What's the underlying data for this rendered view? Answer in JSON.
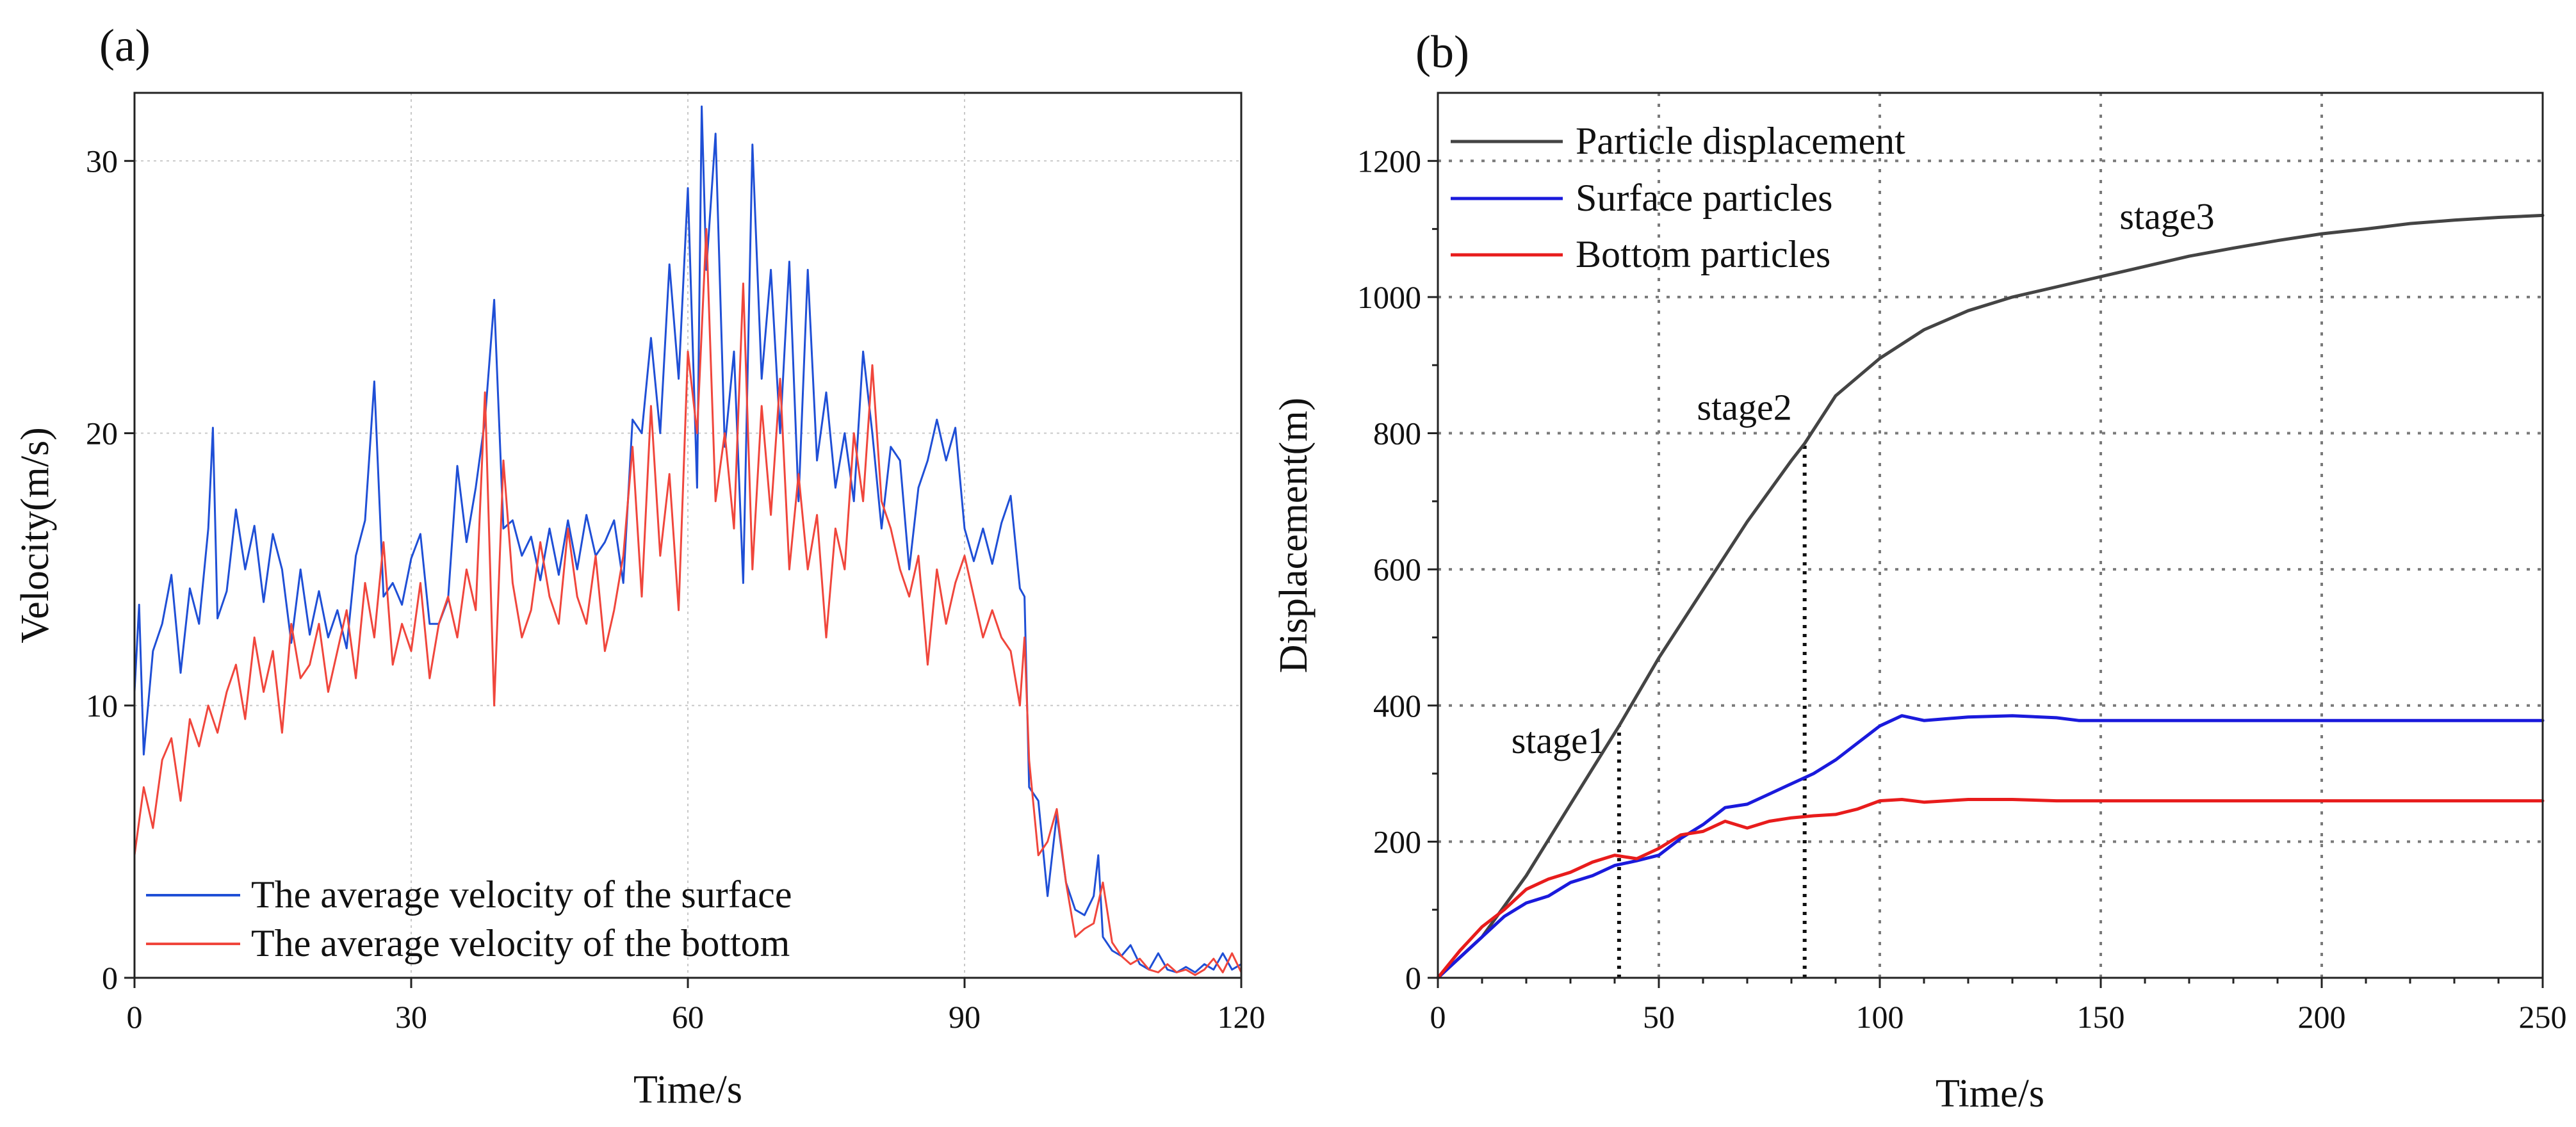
{
  "chart_data": [
    {
      "panel_label": "(a)",
      "type": "line",
      "xlabel": "Time/s",
      "ylabel": "Velocity(m/s)",
      "xlim": [
        0,
        120
      ],
      "ylim": [
        0,
        32.5
      ],
      "xticks": [
        "0",
        "30",
        "60",
        "90",
        "120"
      ],
      "yticks": [
        "0",
        "10",
        "20",
        "30"
      ],
      "grid": true,
      "legend_position": "bottom-left",
      "series": [
        {
          "name": "The average velocity of the surface",
          "color": "#1f4fd6",
          "x": [
            0,
            0.5,
            1,
            2,
            3,
            4,
            5,
            6,
            7,
            8,
            8.5,
            9,
            10,
            11,
            12,
            13,
            14,
            15,
            16,
            17,
            18,
            19,
            20,
            21,
            22,
            23,
            24,
            25,
            26,
            27,
            28,
            29,
            30,
            31,
            32,
            33,
            34,
            35,
            36,
            37,
            38,
            39,
            40,
            41,
            42,
            43,
            44,
            45,
            46,
            47,
            48,
            49,
            50,
            51,
            52,
            53,
            54,
            55,
            56,
            57,
            58,
            59,
            60,
            61,
            61.5,
            62,
            63,
            64,
            65,
            66,
            67,
            68,
            69,
            70,
            71,
            72,
            73,
            74,
            75,
            76,
            77,
            78,
            79,
            80,
            81,
            82,
            83,
            84,
            85,
            86,
            87,
            88,
            89,
            90,
            91,
            92,
            93,
            94,
            95,
            96,
            96.5,
            97,
            98,
            99,
            100,
            101,
            102,
            103,
            104,
            104.5,
            105,
            106,
            107,
            108,
            109,
            110,
            111,
            112,
            113,
            114,
            115,
            116,
            117,
            118,
            119,
            120
          ],
          "values": [
            10.5,
            13.7,
            8.2,
            12.0,
            13.0,
            14.8,
            11.2,
            14.3,
            13.0,
            16.5,
            20.2,
            13.2,
            14.2,
            17.2,
            15.0,
            16.6,
            13.8,
            16.3,
            15.0,
            12.3,
            15.0,
            12.6,
            14.2,
            12.5,
            13.5,
            12.1,
            15.5,
            16.8,
            21.9,
            14.0,
            14.5,
            13.7,
            15.4,
            16.3,
            13.0,
            13.0,
            13.9,
            18.8,
            16.0,
            18.0,
            20.5,
            24.9,
            16.5,
            16.8,
            15.5,
            16.2,
            14.6,
            16.5,
            14.8,
            16.8,
            15.0,
            17.0,
            15.5,
            16.0,
            16.8,
            14.5,
            20.5,
            20.0,
            23.5,
            20.0,
            26.2,
            22.0,
            29.0,
            18.0,
            32.0,
            26.0,
            31.0,
            19.5,
            23.0,
            14.5,
            30.6,
            22.0,
            26.0,
            20.0,
            26.3,
            17.5,
            26.0,
            19.0,
            21.5,
            18.0,
            20.0,
            17.5,
            23.0,
            20.0,
            16.5,
            19.5,
            19.0,
            15.0,
            18.0,
            19.0,
            20.5,
            19.0,
            20.2,
            16.5,
            15.3,
            16.5,
            15.2,
            16.7,
            17.7,
            14.3,
            14.0,
            7.0,
            6.5,
            3.0,
            6.0,
            3.5,
            2.5,
            2.3,
            3.0,
            4.5,
            1.5,
            1.0,
            0.8,
            1.2,
            0.5,
            0.3,
            0.9,
            0.3,
            0.2,
            0.4,
            0.2,
            0.5,
            0.3,
            0.9,
            0.3,
            0.5
          ]
        },
        {
          "name": "The average velocity of the bottom",
          "color": "#f0463c",
          "x": [
            0,
            1,
            2,
            3,
            4,
            5,
            6,
            7,
            8,
            9,
            10,
            11,
            12,
            13,
            14,
            15,
            16,
            17,
            18,
            19,
            20,
            21,
            22,
            23,
            24,
            25,
            26,
            27,
            28,
            29,
            30,
            31,
            32,
            33,
            34,
            35,
            36,
            37,
            38,
            39,
            40,
            41,
            42,
            43,
            44,
            45,
            46,
            47,
            48,
            49,
            50,
            51,
            52,
            53,
            54,
            55,
            56,
            57,
            58,
            59,
            60,
            61,
            62,
            63,
            64,
            65,
            66,
            67,
            68,
            69,
            70,
            71,
            72,
            73,
            74,
            75,
            76,
            77,
            78,
            79,
            80,
            81,
            82,
            83,
            84,
            85,
            86,
            87,
            88,
            89,
            90,
            91,
            92,
            93,
            94,
            95,
            96,
            96.5,
            97,
            98,
            99,
            100,
            101,
            102,
            103,
            104,
            105,
            106,
            107,
            108,
            109,
            110,
            111,
            112,
            113,
            114,
            115,
            116,
            117,
            118,
            119,
            120
          ],
          "values": [
            4.5,
            7.0,
            5.5,
            8.0,
            8.8,
            6.5,
            9.5,
            8.5,
            10.0,
            9.0,
            10.5,
            11.5,
            9.5,
            12.5,
            10.5,
            12.0,
            9.0,
            13.0,
            11.0,
            11.5,
            13.0,
            10.5,
            12.0,
            13.5,
            11.0,
            14.5,
            12.5,
            16.0,
            11.5,
            13.0,
            12.0,
            14.5,
            11.0,
            13.0,
            14.0,
            12.5,
            15.0,
            13.5,
            21.5,
            10.0,
            19.0,
            14.5,
            12.5,
            13.5,
            16.0,
            14.0,
            13.0,
            16.5,
            14.0,
            13.0,
            15.5,
            12.0,
            13.5,
            15.5,
            19.5,
            14.0,
            21.0,
            15.5,
            18.5,
            13.5,
            23.0,
            20.0,
            27.5,
            17.5,
            20.0,
            16.5,
            25.5,
            15.0,
            21.0,
            17.0,
            22.0,
            15.0,
            18.5,
            15.0,
            17.0,
            12.5,
            16.5,
            15.0,
            20.0,
            17.5,
            22.5,
            17.5,
            16.5,
            15.0,
            14.0,
            15.5,
            11.5,
            15.0,
            13.0,
            14.5,
            15.5,
            14.0,
            12.5,
            13.5,
            12.5,
            12.0,
            10.0,
            12.5,
            8.0,
            4.5,
            5.0,
            6.2,
            3.5,
            1.5,
            1.8,
            2.0,
            3.5,
            1.3,
            0.8,
            0.5,
            0.7,
            0.3,
            0.2,
            0.5,
            0.2,
            0.3,
            0.1,
            0.3,
            0.7,
            0.2,
            0.9,
            0.2
          ]
        }
      ]
    },
    {
      "panel_label": "(b)",
      "type": "line",
      "xlabel": "Time/s",
      "ylabel": "Displacement(m)",
      "xlim": [
        0,
        250
      ],
      "ylim": [
        0,
        1300
      ],
      "xticks": [
        "0",
        "50",
        "100",
        "150",
        "200",
        "250"
      ],
      "yticks": [
        "0",
        "200",
        "400",
        "600",
        "800",
        "1000",
        "1200"
      ],
      "grid": true,
      "legend_position": "top-left",
      "series": [
        {
          "name": "Particle displacement",
          "color": "#444444",
          "x": [
            0,
            10,
            20,
            30,
            41,
            50,
            60,
            70,
            80,
            83,
            90,
            100,
            110,
            120,
            130,
            140,
            150,
            160,
            170,
            180,
            190,
            200,
            210,
            220,
            230,
            240,
            250
          ],
          "values": [
            0,
            60,
            150,
            255,
            370,
            470,
            570,
            670,
            760,
            785,
            855,
            910,
            952,
            980,
            1000,
            1015,
            1030,
            1045,
            1060,
            1072,
            1083,
            1093,
            1100,
            1108,
            1113,
            1117,
            1120
          ]
        },
        {
          "name": "Surface particles",
          "color": "#1a1adc",
          "x": [
            0,
            5,
            10,
            15,
            20,
            25,
            30,
            35,
            40,
            45,
            50,
            55,
            60,
            65,
            70,
            75,
            80,
            85,
            90,
            95,
            100,
            105,
            110,
            120,
            130,
            140,
            145,
            150,
            200,
            250
          ],
          "values": [
            0,
            30,
            60,
            90,
            110,
            120,
            140,
            150,
            165,
            172,
            180,
            205,
            225,
            250,
            255,
            270,
            285,
            300,
            320,
            345,
            370,
            385,
            378,
            383,
            385,
            382,
            378,
            378,
            378,
            378
          ]
        },
        {
          "name": "Bottom particles",
          "color": "#e81c1c",
          "x": [
            0,
            5,
            10,
            15,
            20,
            25,
            30,
            35,
            40,
            45,
            50,
            55,
            60,
            65,
            70,
            75,
            80,
            85,
            90,
            95,
            100,
            105,
            110,
            120,
            130,
            140,
            150,
            200,
            250
          ],
          "values": [
            0,
            40,
            75,
            100,
            130,
            145,
            155,
            170,
            180,
            175,
            190,
            210,
            215,
            230,
            220,
            230,
            235,
            238,
            240,
            248,
            260,
            262,
            258,
            262,
            262,
            260,
            260,
            260,
            260
          ]
        }
      ],
      "annotations": [
        {
          "text": "stage1",
          "x": 41,
          "y": 330,
          "line_to_y": 370
        },
        {
          "text": "stage2",
          "x": 83,
          "y": 820,
          "line_to_y": 785
        },
        {
          "text": "stage3",
          "x": 165,
          "y": 1100
        }
      ]
    }
  ]
}
